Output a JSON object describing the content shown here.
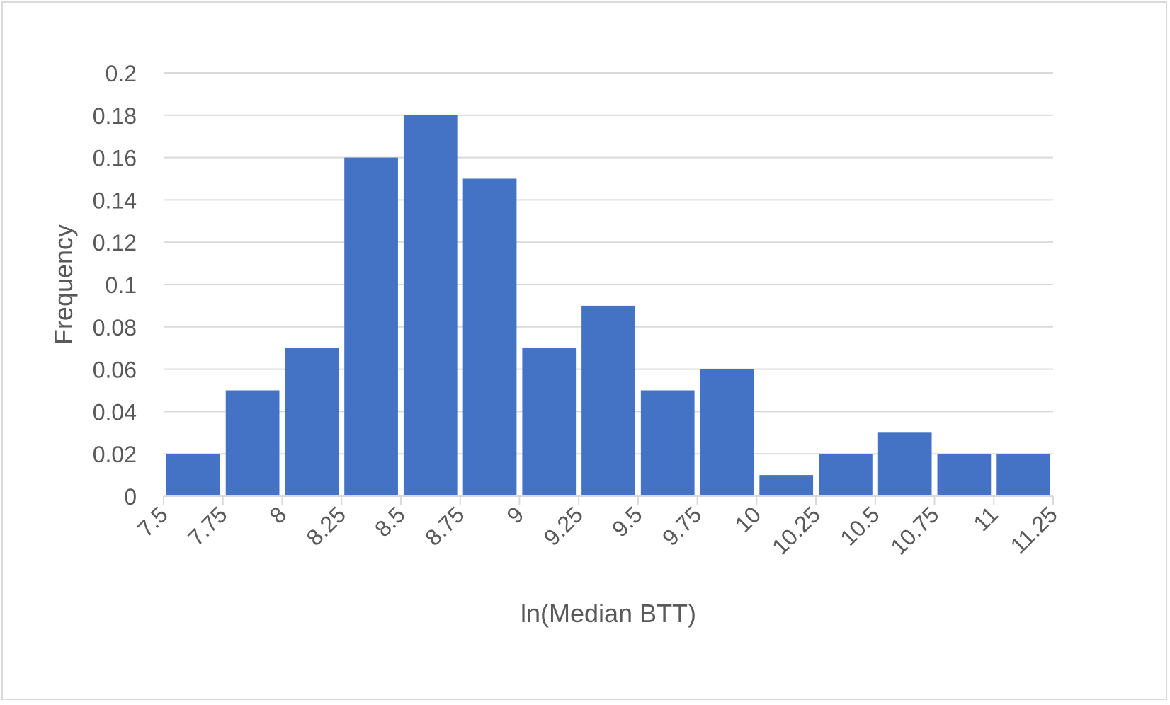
{
  "chart_data": {
    "type": "bar",
    "title": "",
    "xlabel": "ln(Median BTT)",
    "ylabel": "Frequency",
    "x_ticks": [
      "7.5",
      "7.75",
      "8",
      "8.25",
      "8.5",
      "8.75",
      "9",
      "9.25",
      "9.5",
      "9.75",
      "10",
      "10.25",
      "10.5",
      "10.75",
      "11",
      "11.25"
    ],
    "bin_edges": [
      7.5,
      7.75,
      8,
      8.25,
      8.5,
      8.75,
      9,
      9.25,
      9.5,
      9.75,
      10,
      10.25,
      10.5,
      10.75,
      11,
      11.25
    ],
    "values": [
      0.02,
      0.05,
      0.07,
      0.16,
      0.18,
      0.15,
      0.07,
      0.09,
      0.05,
      0.06,
      0.01,
      0.02,
      0.03,
      0.02,
      0.02
    ],
    "y_ticks": [
      "0",
      "0.02",
      "0.04",
      "0.06",
      "0.08",
      "0.1",
      "0.12",
      "0.14",
      "0.16",
      "0.18",
      "0.2"
    ],
    "ylim": [
      0,
      0.2
    ],
    "xlim": [
      7.5,
      11.25
    ],
    "grid": true,
    "legend": "none",
    "colors": {
      "bar": "#4472c4",
      "grid": "#d9d9d9",
      "text": "#595959"
    }
  }
}
